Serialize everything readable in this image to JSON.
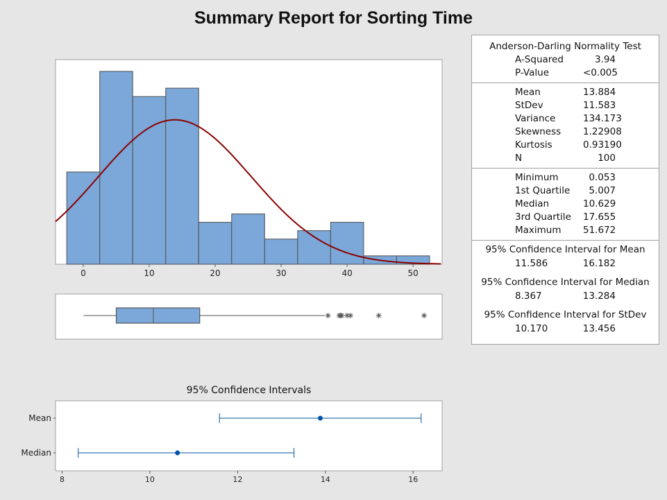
{
  "title": "Summary Report for Sorting Time",
  "stats": {
    "ad_header": "Anderson-Darling Normality Test",
    "ad": [
      {
        "k": "A-Squared",
        "v": "3.94"
      },
      {
        "k": "P-Value",
        "v": "<0.005"
      }
    ],
    "moments": [
      {
        "k": "Mean",
        "v": "13.884"
      },
      {
        "k": "StDev",
        "v": "11.583"
      },
      {
        "k": "Variance",
        "v": "134.173"
      },
      {
        "k": "Skewness",
        "v": "1.22908"
      },
      {
        "k": "Kurtosis",
        "v": "0.93190"
      },
      {
        "k": "N",
        "v": "100"
      }
    ],
    "quantiles": [
      {
        "k": "Minimum",
        "v": "0.053"
      },
      {
        "k": "1st Quartile",
        "v": "5.007"
      },
      {
        "k": "Median",
        "v": "10.629"
      },
      {
        "k": "3rd Quartile",
        "v": "17.655"
      },
      {
        "k": "Maximum",
        "v": "51.672"
      }
    ],
    "ci": [
      {
        "label": "95% Confidence Interval for Mean",
        "lo": "11.586",
        "hi": "16.182"
      },
      {
        "label": "95% Confidence Interval for Median",
        "lo": "8.367",
        "hi": "13.284"
      },
      {
        "label": "95% Confidence Interval for StDev",
        "lo": "10.170",
        "hi": "13.456"
      }
    ]
  },
  "chart_data": [
    {
      "type": "bar",
      "subtype": "histogram",
      "bin_width": 5,
      "bin_centers": [
        0,
        5,
        10,
        15,
        20,
        25,
        30,
        35,
        40,
        45,
        50
      ],
      "counts": [
        11,
        23,
        20,
        21,
        5,
        6,
        3,
        4,
        5,
        1,
        1
      ],
      "xticks": [
        "0",
        "10",
        "20",
        "30",
        "40",
        "50"
      ],
      "xlim": [
        -4.2,
        54.4
      ],
      "ylim": [
        0,
        24.4
      ],
      "fit": {
        "type": "normal",
        "mean": 13.884,
        "stdev": 11.583,
        "n": 100
      },
      "colors": {
        "bar": "#7ba7d9",
        "edge": "#505050",
        "curve": "#8b0000"
      }
    },
    {
      "type": "boxplot",
      "whisker_low": 0.053,
      "q1": 5.007,
      "median": 10.629,
      "q3": 17.655,
      "whisker_high": 36.6,
      "outliers": [
        37.1,
        38.8,
        39.0,
        39.2,
        40.0,
        40.5,
        44.8,
        51.672
      ]
    },
    {
      "type": "interval",
      "title": "95% Confidence Intervals",
      "categories": [
        "Mean",
        "Median"
      ],
      "estimates": [
        13.884,
        10.629
      ],
      "lower": [
        11.586,
        8.367
      ],
      "upper": [
        16.182,
        13.284
      ],
      "xticks": [
        "8",
        "10",
        "12",
        "14",
        "16"
      ],
      "xlim": [
        7.85,
        16.66
      ],
      "color": "#0054a6"
    }
  ]
}
